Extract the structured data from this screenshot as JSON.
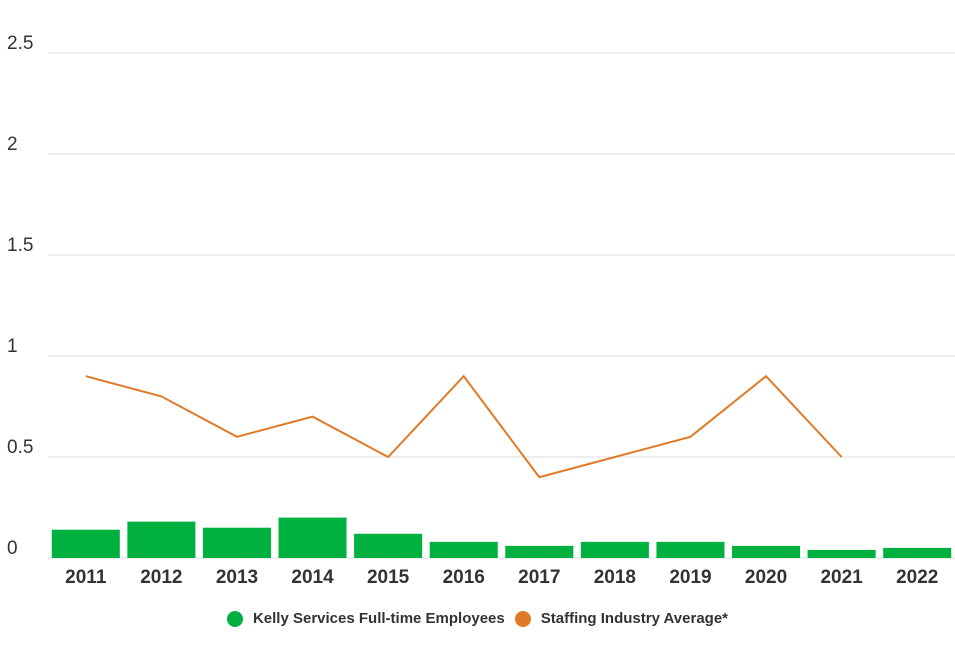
{
  "colors": {
    "bar": "#00b140",
    "line": "#e07a26",
    "grid": "#dcdcdc",
    "text": "#333333"
  },
  "chart_data": {
    "type": "bar",
    "categories": [
      "2011",
      "2012",
      "2013",
      "2014",
      "2015",
      "2016",
      "2017",
      "2018",
      "2019",
      "2020",
      "2021",
      "2022"
    ],
    "series": [
      {
        "name": "Kelly Services Full-time Employees",
        "type": "bar",
        "values": [
          0.14,
          0.18,
          0.15,
          0.2,
          0.12,
          0.08,
          0.06,
          0.08,
          0.08,
          0.06,
          0.04,
          0.05
        ]
      },
      {
        "name": "Staffing Industry Average*",
        "type": "line",
        "values": [
          0.9,
          0.8,
          0.6,
          0.7,
          0.5,
          0.9,
          0.4,
          0.5,
          0.6,
          0.9,
          0.5,
          null
        ]
      }
    ],
    "yticks": [
      "0",
      "0.5",
      "1",
      "1.5",
      "2",
      "2.5"
    ],
    "ylim": [
      0,
      2.5
    ],
    "grid": true,
    "legend_position": "bottom"
  }
}
